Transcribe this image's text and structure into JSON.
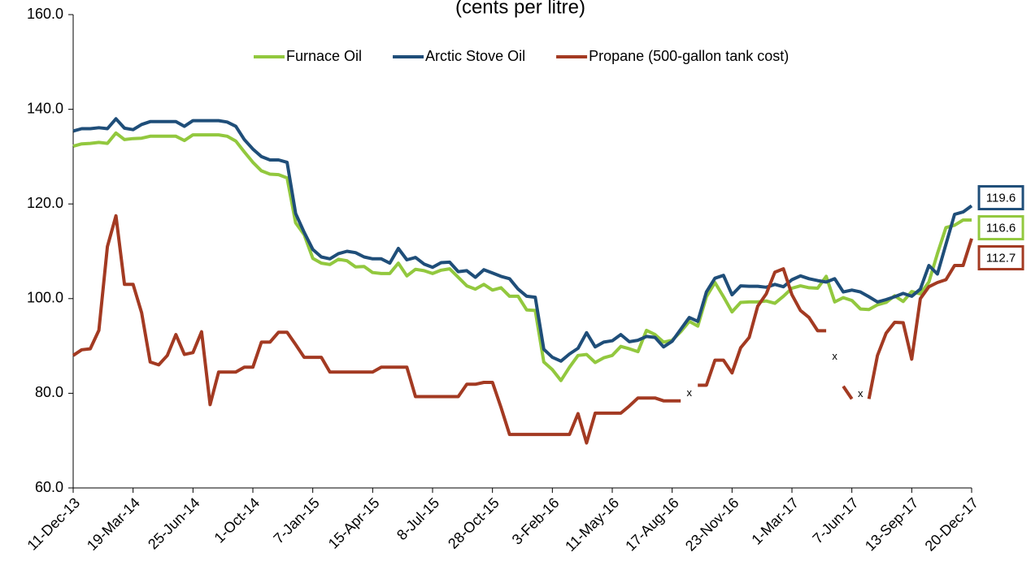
{
  "chart_data": {
    "type": "line",
    "title": "(cents per litre)",
    "categories": [
      "11-Dec-13",
      null,
      null,
      null,
      null,
      null,
      null,
      "19-Mar-14",
      null,
      null,
      null,
      null,
      null,
      null,
      "25-Jun-14",
      null,
      null,
      null,
      null,
      null,
      null,
      "1-Oct-14",
      null,
      null,
      null,
      null,
      null,
      null,
      "7-Jan-15",
      null,
      null,
      null,
      null,
      null,
      null,
      "15-Apr-15",
      null,
      null,
      null,
      null,
      null,
      null,
      "8-Jul-15",
      null,
      null,
      null,
      null,
      null,
      null,
      "28-Oct-15",
      null,
      null,
      null,
      null,
      null,
      null,
      "3-Feb-16",
      null,
      null,
      null,
      null,
      null,
      null,
      "11-May-16",
      null,
      null,
      null,
      null,
      null,
      null,
      "17-Aug-16",
      null,
      null,
      null,
      null,
      null,
      null,
      "23-Nov-16",
      null,
      null,
      null,
      null,
      null,
      null,
      "1-Mar-17",
      null,
      null,
      null,
      null,
      null,
      null,
      "7-Jun-17",
      null,
      null,
      null,
      null,
      null,
      null,
      "13-Sep-17",
      null,
      null,
      null,
      null,
      null,
      null,
      "20-Dec-17"
    ],
    "series": [
      {
        "name": "Furnace Oil",
        "color": "#92c83e",
        "values": [
          132.2,
          132.7,
          132.8,
          133,
          132.8,
          135,
          133.6,
          133.8,
          133.9,
          134.3,
          134.3,
          134.3,
          134.3,
          133.4,
          134.6,
          134.6,
          134.6,
          134.6,
          134.3,
          133.3,
          131,
          128.8,
          127,
          126.3,
          126.2,
          125.5,
          116,
          113.5,
          108.5,
          107.5,
          107.2,
          108.3,
          108,
          106.7,
          106.8,
          105.5,
          105.3,
          105.3,
          107.5,
          104.8,
          106.2,
          105.9,
          105.3,
          106,
          106.3,
          104.5,
          102.7,
          102,
          103,
          101.8,
          102.3,
          100.5,
          100.5,
          97.6,
          97.5,
          86.6,
          85,
          82.7,
          85.5,
          88,
          88.2,
          86.5,
          87.5,
          88,
          89.9,
          89.4,
          88.8,
          93.3,
          92.4,
          90.8,
          91.2,
          93,
          95.2,
          94.2,
          100.4,
          103.4,
          100.4,
          97.2,
          99.2,
          99.3,
          99.3,
          99.5,
          99,
          100.5,
          102.2,
          102.7,
          102.3,
          102.2,
          104.7,
          99.3,
          100.2,
          99.6,
          97.8,
          97.7,
          98.7,
          99.2,
          100.6,
          99.4,
          101.5,
          101,
          103.5,
          109.5,
          115,
          115.5,
          116.6,
          116.6
        ]
      },
      {
        "name": "Arctic Stove Oil",
        "color": "#1f4e79",
        "values": [
          135.4,
          135.9,
          135.9,
          136.1,
          135.9,
          138,
          136,
          135.7,
          136.8,
          137.4,
          137.4,
          137.4,
          137.4,
          136.4,
          137.6,
          137.6,
          137.6,
          137.6,
          137.3,
          136.4,
          133.6,
          131.6,
          130,
          129.3,
          129.3,
          128.8,
          118,
          114,
          110.4,
          108.8,
          108.4,
          109.5,
          110,
          109.7,
          108.8,
          108.4,
          108.4,
          107.5,
          110.6,
          108.2,
          108.7,
          107.3,
          106.6,
          107.6,
          107.7,
          105.7,
          105.9,
          104.5,
          106.1,
          105.4,
          104.7,
          104.2,
          102,
          100.5,
          100.3,
          89.3,
          87.6,
          86.8,
          88.3,
          89.5,
          92.8,
          89.8,
          90.8,
          91.1,
          92.4,
          90.9,
          91.2,
          92,
          91.8,
          89.8,
          91,
          93.5,
          96,
          95.2,
          101.4,
          104.3,
          104.9,
          100.8,
          102.7,
          102.6,
          102.6,
          102.4,
          103,
          102.5,
          104,
          104.8,
          104.2,
          103.8,
          103.5,
          104.2,
          101.4,
          101.8,
          101.4,
          100.4,
          99.3,
          99.8,
          100.4,
          101.1,
          100.5,
          102,
          107,
          105.2,
          111.5,
          117.8,
          118.3,
          119.6
        ]
      },
      {
        "name": "Propane (500-gallon tank cost)",
        "color": "#a33a22",
        "values": [
          88,
          89.2,
          89.4,
          93.3,
          111,
          117.5,
          103,
          103,
          97,
          86.6,
          86,
          88,
          92.4,
          88.2,
          88.6,
          93,
          77.6,
          84.5,
          84.5,
          84.5,
          85.5,
          85.5,
          90.8,
          90.8,
          92.9,
          92.9,
          90.3,
          87.6,
          87.6,
          87.6,
          84.5,
          84.5,
          84.5,
          84.5,
          84.5,
          84.5,
          85.5,
          85.5,
          85.5,
          85.5,
          79.3,
          79.3,
          79.3,
          79.3,
          79.3,
          79.3,
          81.9,
          81.9,
          82.3,
          82.3,
          77,
          71.3,
          71.3,
          71.3,
          71.3,
          71.3,
          71.3,
          71.3,
          71.3,
          75.7,
          69.5,
          75.8,
          75.8,
          75.8,
          75.8,
          77.3,
          79,
          79,
          79,
          78.4,
          78.4,
          78.4,
          null,
          81.7,
          81.7,
          87,
          87,
          84.3,
          89.6,
          91.8,
          98.4,
          101,
          105.6,
          106.3,
          100.8,
          97.5,
          96,
          93.2,
          93.2,
          null,
          81.5,
          78.8,
          null,
          78.8,
          88,
          92.7,
          95,
          94.9,
          87.2,
          100,
          102.5,
          103.4,
          104,
          107,
          107,
          112.7
        ]
      }
    ],
    "annotations": [
      {
        "text": "x",
        "x": 72,
        "y": 80
      },
      {
        "text": "x",
        "x": 89,
        "y": 87.7
      },
      {
        "text": "x",
        "x": 92,
        "y": 79.8
      }
    ],
    "ylim": [
      60,
      160
    ],
    "yticks": [
      {
        "value": 60,
        "label": "60.0"
      },
      {
        "value": 80,
        "label": "80.0"
      },
      {
        "value": 100,
        "label": "100.0"
      },
      {
        "value": 120,
        "label": "120.0"
      },
      {
        "value": 140,
        "label": "140.0"
      },
      {
        "value": 160,
        "label": "160.0"
      }
    ],
    "grid": false,
    "legend": "top"
  }
}
